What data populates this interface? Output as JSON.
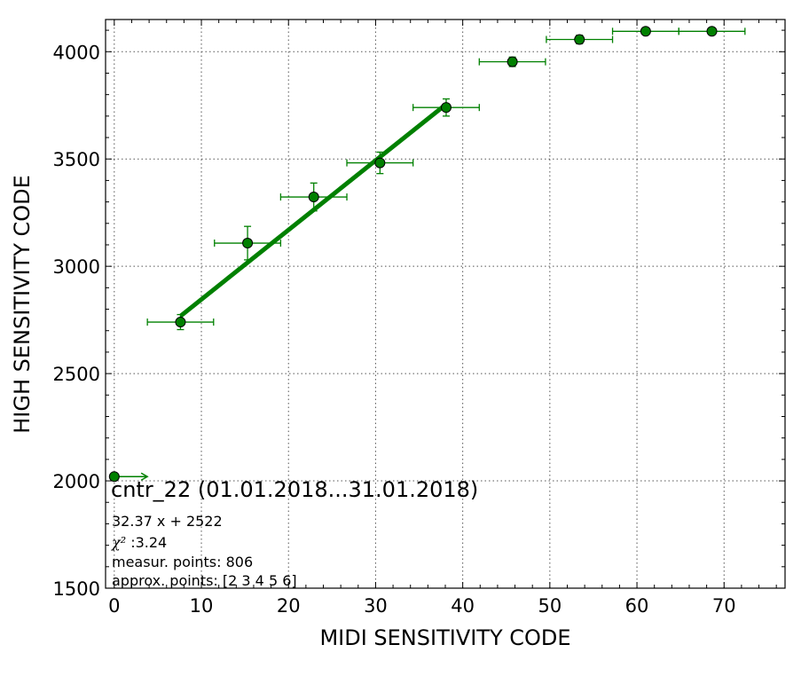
{
  "chart_data": {
    "type": "scatter",
    "xlabel": "MIDI SENSITIVITY CODE",
    "ylabel": "HIGH SENSITIVITY CODE",
    "xlim": [
      -1,
      77
    ],
    "ylim": [
      1500,
      4150
    ],
    "x_ticks": [
      0,
      10,
      20,
      30,
      40,
      50,
      60,
      70
    ],
    "y_ticks": [
      1500,
      2000,
      2500,
      3000,
      3500,
      4000
    ],
    "grid": true,
    "colors": {
      "series": "#008000",
      "marker_edge": "#000000",
      "grid": "#555555"
    },
    "series": [
      {
        "points": [
          {
            "x": 0.0,
            "y": 2020,
            "xerr_low": 0,
            "xerr_high": 3.8,
            "yerr": 0,
            "arrow": true
          },
          {
            "x": 7.6,
            "y": 2740,
            "xerr_low": 3.8,
            "xerr_high": 3.8,
            "yerr": 35
          },
          {
            "x": 15.3,
            "y": 3108,
            "xerr_low": 3.8,
            "xerr_high": 3.8,
            "yerr": 78
          },
          {
            "x": 22.9,
            "y": 3323,
            "xerr_low": 3.8,
            "xerr_high": 3.8,
            "yerr": 65
          },
          {
            "x": 30.5,
            "y": 3482,
            "xerr_low": 3.8,
            "xerr_high": 3.8,
            "yerr": 50
          },
          {
            "x": 38.1,
            "y": 3740,
            "xerr_low": 3.8,
            "xerr_high": 3.8,
            "yerr": 40
          },
          {
            "x": 45.7,
            "y": 3953,
            "xerr_low": 3.8,
            "xerr_high": 3.8,
            "yerr": 22
          },
          {
            "x": 53.4,
            "y": 4057,
            "xerr_low": 3.8,
            "xerr_high": 3.8,
            "yerr": 20
          },
          {
            "x": 61.0,
            "y": 4095,
            "xerr_low": 3.8,
            "xerr_high": 3.8,
            "yerr": 8
          },
          {
            "x": 68.6,
            "y": 4095,
            "xerr_low": 3.8,
            "xerr_high": 3.8,
            "yerr": 8
          }
        ]
      }
    ],
    "fit": {
      "slope": 32.37,
      "intercept": 2522,
      "x_range": [
        7.6,
        38.1
      ]
    },
    "annotations": {
      "title": "cntr_22 (01.01.2018...31.01.2018)",
      "equation": "32.37 x + 2522",
      "chi_label": "χ²",
      "chi_value": " :3.24",
      "measur": "measur. points: 806",
      "approx": "approx. points: [2 3 4 5 6]"
    }
  }
}
